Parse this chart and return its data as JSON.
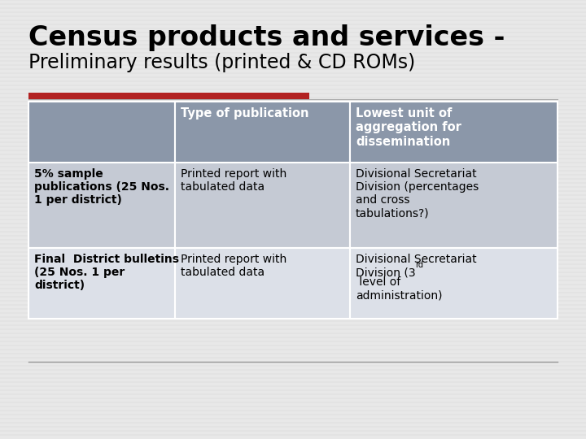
{
  "title_line1": "Census products and services -",
  "title_line2": "Preliminary results (printed & CD ROMs)",
  "bg_color": "#e8e8e8",
  "header_bg": "#8b97a9",
  "row1_bg": "#c5cad4",
  "row2_bg": "#dce0e8",
  "header_text_color": "#ffffff",
  "cell_text_color": "#000000",
  "title_color": "#000000",
  "red_bar_color": "#b22222",
  "gray_line_color": "#aaaaaa",
  "bottom_line_color": "#999999",
  "col_header1": "Type of publication",
  "col_header2": "Lowest unit of\naggregation for\ndissemination",
  "row1_col0": "5% sample\npublications (25 Nos.\n1 per district)",
  "row1_col1": "Printed report with\ntabulated data",
  "row1_col2": "Divisional Secretariat\nDivision (percentages\nand cross\ntabulations?)",
  "row2_col0": "Final  District bulletins\n(25 Nos. 1 per\ndistrict)",
  "row2_col1": "Printed report with\ntabulated data",
  "row2_col2_part1": "Divisional Secretariat\nDivision (3",
  "row2_col2_part2": " level of\nadministration)"
}
